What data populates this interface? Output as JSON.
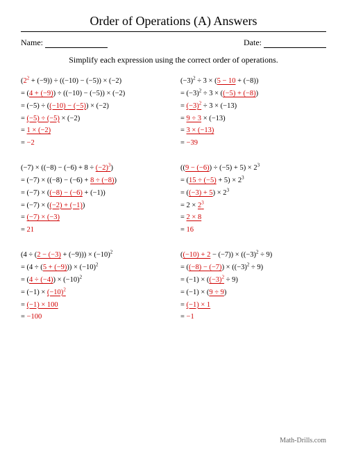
{
  "title": "Order of Operations (A) Answers",
  "name_label": "Name:",
  "date_label": "Date:",
  "instruction": "Simplify each expression using the correct order of operations.",
  "footer": "Math-Drills.com",
  "colors": {
    "text": "#000000",
    "highlight": "#d00000",
    "background": "#ffffff",
    "footer": "#666666"
  },
  "font_family": "Georgia, Times New Roman, serif",
  "problems": [
    {
      "lines": [
        "(<r>2²</r> + (−9)) ÷ ((−10) − (−5)) × (−2)",
        "= (<r><u>4 + (−9)</u></r>) ÷ ((−10) − (−5)) × (−2)",
        "= (−5) ÷ (<r><u>(−10) − (−5)</u></r>) × (−2)",
        "= <r><u>(−5) ÷ (−5)</u></r> × (−2)",
        "= <r><u>1 × (−2)</u></r>",
        "= <r>−2</r>"
      ]
    },
    {
      "lines": [
        "(−3)² ÷ 3 × (<r><u>5 − 10</u></r> + (−8))",
        "= (−3)² ÷ 3 × (<r><u>(−5) + (−8)</u></r>)",
        "= <r><u>(−3)²</u></r> ÷ 3 × (−13)",
        "= <r><u>9 ÷ 3</u></r> × (−13)",
        "= <r><u>3 × (−13)</u></r>",
        "= <r>−39</r>"
      ]
    },
    {
      "lines": [
        "(−7) × ((−8) − (−6) + 8 ÷ <r><u>(−2)³</u></r>)",
        "= (−7) × ((−8) − (−6) + <r><u>8 ÷ (−8)</u></r>)",
        "= (−7) × (<r><u>(−8) − (−6)</u></r> + (−1))",
        "= (−7) × (<r><u>(−2) + (−1)</u></r>)",
        "= <r><u>(−7) × (−3)</u></r>",
        "= <r>21</r>"
      ]
    },
    {
      "lines": [
        "((<r><u>9 − (−6)</u></r>) ÷ (−5) + 5) × 2³",
        "= (<r><u>15 ÷ (−5)</u></r> + 5) × 2³",
        "= (<r><u>(−3) + 5</u></r>) × 2³",
        "= 2 × <r><u>2³</u></r>",
        "= <r><u>2 × 8</u></r>",
        "= <r>16</r>"
      ]
    },
    {
      "lines": [
        "(4 ÷ (<r><u>2 − (−3)</u></r> + (−9))) × (−10)²",
        "= (4 ÷ (<r><u>5 + (−9)</u></r>)) × (−10)²",
        "= (<r><u>4 ÷ (−4)</u></r>) × (−10)²",
        "= (−1) × <r><u>(−10)²</u></r>",
        "= <r><u>(−1) × 100</u></r>",
        "= <r>−100</r>"
      ]
    },
    {
      "lines": [
        "(<r><u>(−10) + 2</u></r> − (−7)) × ((−3)² ÷ 9)",
        "= (<r><u>(−8) − (−7)</u></r>) × ((−3)² ÷ 9)",
        "= (−1) × (<r><u>(−3)²</u></r> ÷ 9)",
        "= (−1) × (<r><u>9 ÷ 9</u></r>)",
        "= <r><u>(−1) × 1</u></r>",
        "= <r>−1</r>"
      ]
    }
  ]
}
